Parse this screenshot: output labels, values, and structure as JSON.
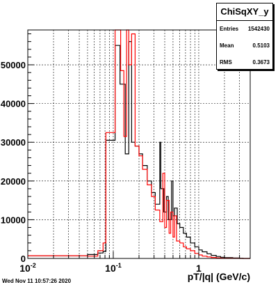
{
  "chart_data": {
    "type": "line",
    "title": "",
    "xlabel": "pT/|q| (GeV/c)",
    "ylabel": "",
    "x_scale": "log",
    "xlim": [
      0.01,
      4.0
    ],
    "ylim": [
      0,
      59000
    ],
    "grid": true,
    "x_tick_labels": [
      {
        "value": 0.01,
        "base": "10",
        "exp": "-2"
      },
      {
        "value": 0.1,
        "base": "10",
        "exp": "-1"
      },
      {
        "value": 1,
        "base": "1",
        "exp": ""
      }
    ],
    "y_ticks": [
      {
        "value": 0,
        "label": "0"
      },
      {
        "value": 10000,
        "label": "10000"
      },
      {
        "value": 20000,
        "label": "20000"
      },
      {
        "value": 30000,
        "label": "30000"
      },
      {
        "value": 40000,
        "label": "40000"
      },
      {
        "value": 50000,
        "label": "50000"
      }
    ],
    "series": [
      {
        "color": "#000000",
        "points": [
          [
            0.01,
            700
          ],
          [
            0.05,
            1000
          ],
          [
            0.066,
            1400
          ],
          [
            0.076,
            1800
          ],
          [
            0.082,
            30500
          ],
          [
            0.105,
            55000
          ],
          [
            0.12,
            45000
          ],
          [
            0.138,
            27000
          ],
          [
            0.152,
            56000
          ],
          [
            0.164,
            30000
          ],
          [
            0.18,
            29000
          ],
          [
            0.2,
            27000
          ],
          [
            0.22,
            24000
          ],
          [
            0.25,
            20000
          ],
          [
            0.28,
            17000
          ],
          [
            0.31,
            14000
          ],
          [
            0.35,
            30000
          ],
          [
            0.36,
            18000
          ],
          [
            0.39,
            12000
          ],
          [
            0.42,
            16000
          ],
          [
            0.44,
            10000
          ],
          [
            0.48,
            20000
          ],
          [
            0.5,
            11000
          ],
          [
            0.52,
            13000
          ],
          [
            0.56,
            9000
          ],
          [
            0.6,
            8000
          ],
          [
            0.66,
            6500
          ],
          [
            0.72,
            5500
          ],
          [
            0.8,
            4000
          ],
          [
            0.9,
            3000
          ],
          [
            1.0,
            2200
          ],
          [
            1.1,
            1700
          ],
          [
            1.25,
            1200
          ],
          [
            1.4,
            800
          ],
          [
            1.6,
            500
          ],
          [
            1.8,
            300
          ],
          [
            2.0,
            200
          ],
          [
            2.5,
            100
          ],
          [
            3.0,
            50
          ],
          [
            3.3,
            0
          ]
        ]
      },
      {
        "color": "#ff0000",
        "points": [
          [
            0.01,
            700
          ],
          [
            0.05,
            600
          ],
          [
            0.066,
            2000
          ],
          [
            0.076,
            4000
          ],
          [
            0.082,
            32500
          ],
          [
            0.105,
            59000
          ],
          [
            0.122,
            48500
          ],
          [
            0.133,
            31500
          ],
          [
            0.143,
            59000
          ],
          [
            0.152,
            50000
          ],
          [
            0.164,
            58000
          ],
          [
            0.18,
            29000
          ],
          [
            0.2,
            26500
          ],
          [
            0.22,
            23000
          ],
          [
            0.25,
            19000
          ],
          [
            0.28,
            16000
          ],
          [
            0.31,
            12500
          ],
          [
            0.35,
            9500
          ],
          [
            0.38,
            22000
          ],
          [
            0.4,
            8000
          ],
          [
            0.42,
            15000
          ],
          [
            0.45,
            6500
          ],
          [
            0.47,
            12000
          ],
          [
            0.5,
            5500
          ],
          [
            0.52,
            11000
          ],
          [
            0.55,
            4500
          ],
          [
            0.6,
            4000
          ],
          [
            0.66,
            3000
          ],
          [
            0.72,
            2500
          ],
          [
            0.8,
            2000
          ],
          [
            0.9,
            1300
          ],
          [
            1.0,
            900
          ],
          [
            1.1,
            600
          ],
          [
            1.25,
            400
          ],
          [
            1.4,
            250
          ],
          [
            1.6,
            150
          ],
          [
            1.8,
            80
          ],
          [
            2.0,
            50
          ],
          [
            2.5,
            20
          ],
          [
            3.0,
            0
          ]
        ]
      }
    ]
  },
  "stats": {
    "title": "ChiSqXY_y",
    "rows": [
      {
        "label": "Entries",
        "value": "1542430"
      },
      {
        "label": "Mean",
        "value": "0.5103"
      },
      {
        "label": "RMS",
        "value": "0.3673"
      }
    ]
  },
  "footer": {
    "date": "Wed Nov 11 10:57:26 2020"
  }
}
